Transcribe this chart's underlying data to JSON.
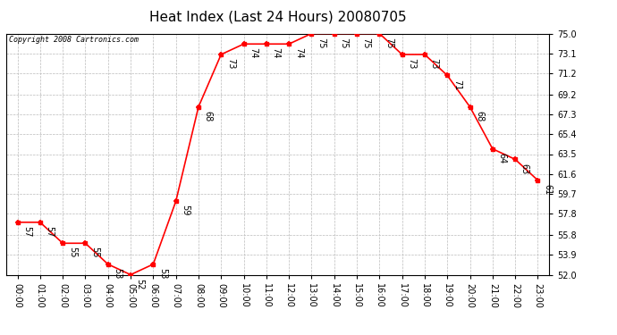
{
  "title": "Heat Index (Last 24 Hours) 20080705",
  "copyright": "Copyright 2008 Cartronics.com",
  "hours": [
    "00:00",
    "01:00",
    "02:00",
    "03:00",
    "04:00",
    "05:00",
    "06:00",
    "07:00",
    "08:00",
    "09:00",
    "10:00",
    "11:00",
    "12:00",
    "13:00",
    "14:00",
    "15:00",
    "16:00",
    "17:00",
    "18:00",
    "19:00",
    "20:00",
    "21:00",
    "22:00",
    "23:00"
  ],
  "values": [
    57,
    57,
    55,
    55,
    53,
    52,
    53,
    59,
    68,
    73,
    74,
    74,
    74,
    75,
    75,
    75,
    75,
    73,
    73,
    71,
    68,
    64,
    63,
    61
  ],
  "ylim_min": 52.0,
  "ylim_max": 75.0,
  "yticks": [
    75.0,
    73.1,
    71.2,
    69.2,
    67.3,
    65.4,
    63.5,
    61.6,
    59.7,
    57.8,
    55.8,
    53.9,
    52.0
  ],
  "line_color": "red",
  "marker_color": "red",
  "bg_color": "white",
  "grid_color": "#bbbbbb",
  "title_fontsize": 11,
  "label_fontsize": 7,
  "annotation_fontsize": 7,
  "copyright_fontsize": 6
}
